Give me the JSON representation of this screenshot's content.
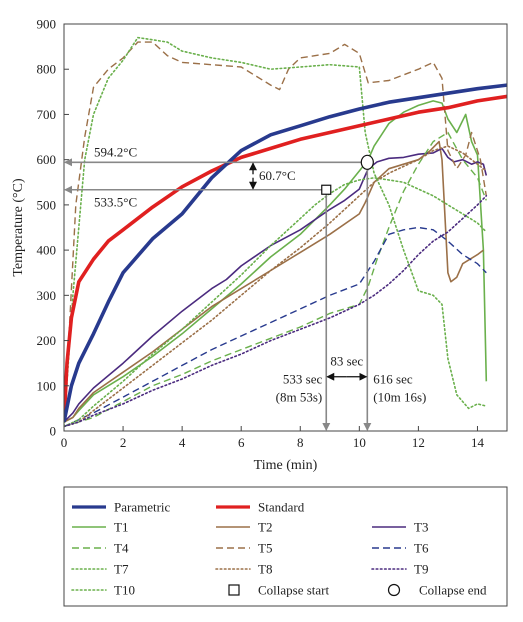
{
  "chart_data": {
    "type": "line",
    "xlabel": "Time (min)",
    "ylabel": "Temperature (°C)",
    "xlim": [
      0,
      15
    ],
    "ylim": [
      0,
      900
    ],
    "xticks": [
      "0",
      "2",
      "4",
      "6",
      "8",
      "10",
      "12",
      "14"
    ],
    "yticks": [
      "0",
      "100",
      "200",
      "300",
      "400",
      "500",
      "600",
      "700",
      "800",
      "900"
    ],
    "grid": false,
    "legend_position": "bottom",
    "series": [
      {
        "name": "Parametric",
        "color": "#283a8e",
        "style": "solid",
        "width": 3.6,
        "x": [
          0,
          0.25,
          0.5,
          1,
          1.5,
          2,
          3,
          4,
          5,
          6,
          7,
          8,
          9,
          10,
          11,
          12,
          13,
          14,
          15
        ],
        "y": [
          20,
          100,
          150,
          215,
          285,
          350,
          425,
          480,
          560,
          620,
          655,
          675,
          695,
          712,
          727,
          737,
          747,
          757,
          765
        ]
      },
      {
        "name": "Standard",
        "color": "#e02020",
        "style": "solid",
        "width": 3.6,
        "x": [
          0,
          0.1,
          0.25,
          0.5,
          1,
          1.5,
          2,
          3,
          4,
          5,
          6,
          7,
          8,
          9,
          10,
          11,
          12,
          13,
          14,
          15
        ],
        "y": [
          20,
          150,
          250,
          330,
          380,
          420,
          445,
          495,
          540,
          575,
          605,
          625,
          645,
          660,
          675,
          690,
          705,
          715,
          730,
          740
        ]
      },
      {
        "name": "T1",
        "color": "#6ab04c",
        "style": "solid",
        "width": 1.6,
        "x": [
          0,
          0.3,
          0.5,
          1,
          2,
          3,
          4,
          5,
          6,
          7,
          8,
          9,
          9.5,
          10,
          10.3,
          10.5,
          11,
          11.5,
          12,
          12.5,
          12.8,
          13,
          13.3,
          13.6,
          13.8,
          14,
          14.2,
          14.3
        ],
        "y": [
          20,
          30,
          45,
          80,
          120,
          165,
          215,
          270,
          325,
          385,
          435,
          500,
          535,
          575,
          600,
          630,
          680,
          705,
          720,
          730,
          725,
          690,
          660,
          700,
          640,
          610,
          400,
          110
        ]
      },
      {
        "name": "T2",
        "color": "#9b7048",
        "style": "solid",
        "width": 1.6,
        "x": [
          0,
          0.3,
          0.5,
          1,
          2,
          3,
          4,
          5,
          6,
          7,
          8,
          9,
          10,
          10.2,
          10.5,
          11,
          11.5,
          12,
          12.4,
          12.7,
          12.8,
          13,
          13.1,
          13.3,
          13.5,
          14,
          14.2
        ],
        "y": [
          20,
          30,
          50,
          85,
          130,
          175,
          225,
          275,
          315,
          355,
          395,
          435,
          480,
          505,
          550,
          580,
          590,
          600,
          620,
          640,
          600,
          350,
          330,
          340,
          370,
          390,
          400
        ]
      },
      {
        "name": "T3",
        "color": "#4b2b7f",
        "style": "solid",
        "width": 1.6,
        "x": [
          0,
          0.3,
          0.5,
          1,
          2,
          3,
          4,
          5,
          5.5,
          6,
          7,
          8,
          9,
          9.5,
          10,
          10.3,
          10.6,
          11,
          11.5,
          12,
          12.5,
          12.8,
          13,
          13.2,
          13.5,
          13.8,
          14,
          14.2,
          14.3
        ],
        "y": [
          20,
          40,
          60,
          95,
          150,
          210,
          265,
          315,
          335,
          365,
          410,
          445,
          490,
          510,
          535,
          580,
          595,
          603,
          605,
          612,
          615,
          625,
          605,
          595,
          600,
          590,
          595,
          590,
          565
        ]
      },
      {
        "name": "T4",
        "color": "#6ab04c",
        "style": "dashed",
        "width": 1.4,
        "x": [
          0,
          0.5,
          1,
          2,
          3,
          4,
          5,
          6,
          7,
          8,
          9,
          10,
          10.3,
          10.6,
          11,
          11.5,
          12,
          12.5,
          13,
          13.5,
          14,
          14.3
        ],
        "y": [
          10,
          20,
          30,
          65,
          100,
          125,
          155,
          180,
          205,
          230,
          260,
          280,
          320,
          380,
          450,
          530,
          590,
          640,
          660,
          600,
          560,
          510
        ]
      },
      {
        "name": "T5",
        "color": "#9b7048",
        "style": "dashed",
        "width": 1.4,
        "x": [
          0,
          0.2,
          0.4,
          0.7,
          1,
          1.5,
          2,
          2.5,
          3,
          3.5,
          4,
          5,
          6,
          7,
          7.3,
          7.6,
          8,
          9,
          9.5,
          10,
          10.3,
          11,
          12,
          12.5,
          12.8,
          13,
          13.3,
          13.6,
          13.8,
          14.1,
          14.3
        ],
        "y": [
          20,
          250,
          500,
          650,
          760,
          800,
          825,
          860,
          860,
          830,
          815,
          810,
          805,
          765,
          755,
          800,
          825,
          835,
          855,
          835,
          770,
          775,
          800,
          815,
          780,
          620,
          580,
          610,
          660,
          600,
          520
        ]
      },
      {
        "name": "T6",
        "color": "#283a8e",
        "style": "dashed",
        "width": 1.4,
        "x": [
          0,
          0.5,
          1,
          2,
          3,
          4,
          5,
          6,
          7,
          8,
          9,
          10,
          10.5,
          11,
          11.5,
          12,
          12.5,
          12.8,
          13,
          13.5,
          14,
          14.3
        ],
        "y": [
          10,
          25,
          40,
          75,
          110,
          145,
          180,
          210,
          240,
          270,
          300,
          325,
          375,
          435,
          445,
          450,
          445,
          430,
          420,
          390,
          370,
          350
        ]
      },
      {
        "name": "T7",
        "color": "#6ab04c",
        "style": "dotted",
        "width": 1.6,
        "x": [
          0,
          0.5,
          1,
          2,
          3,
          4,
          5,
          6,
          7,
          8,
          8.5,
          9,
          9.5,
          10,
          10.5,
          11,
          11.5,
          12,
          12.5,
          13,
          13.5,
          14,
          14.3
        ],
        "y": [
          10,
          25,
          55,
          110,
          170,
          225,
          285,
          345,
          410,
          470,
          500,
          525,
          545,
          555,
          560,
          555,
          550,
          535,
          520,
          500,
          480,
          460,
          440
        ]
      },
      {
        "name": "T8",
        "color": "#9b7048",
        "style": "dotted",
        "width": 1.6,
        "x": [
          0,
          0.5,
          1,
          2,
          3,
          4,
          5,
          6,
          7,
          8,
          9,
          9.5,
          10,
          10.5,
          11,
          11.5,
          12,
          12.5,
          13,
          13.5,
          14,
          14.3
        ],
        "y": [
          10,
          20,
          45,
          95,
          145,
          195,
          245,
          300,
          355,
          405,
          460,
          490,
          520,
          550,
          570,
          585,
          600,
          620,
          630,
          615,
          590,
          575
        ]
      },
      {
        "name": "T9",
        "color": "#4b2b7f",
        "style": "dotted",
        "width": 1.6,
        "x": [
          0,
          0.5,
          1,
          2,
          3,
          4,
          5,
          6,
          7,
          8,
          9,
          10,
          10.5,
          11,
          11.5,
          12,
          12.5,
          13,
          13.5,
          14,
          14.3
        ],
        "y": [
          10,
          20,
          35,
          60,
          90,
          115,
          145,
          170,
          200,
          225,
          250,
          280,
          300,
          325,
          355,
          390,
          420,
          440,
          470,
          500,
          520
        ]
      },
      {
        "name": "T10",
        "color": "#6ab04c",
        "style": "dotted",
        "width": 1.6,
        "x": [
          0,
          0.3,
          0.7,
          1,
          1.5,
          2,
          2.5,
          3,
          3.5,
          4,
          5,
          6,
          7,
          8,
          9,
          10,
          10.2,
          10.5,
          11,
          11.5,
          12,
          12.5,
          12.8,
          13,
          13.3,
          13.7,
          14,
          14.3
        ],
        "y": [
          10,
          300,
          600,
          700,
          780,
          820,
          870,
          865,
          860,
          840,
          825,
          815,
          800,
          805,
          810,
          805,
          660,
          570,
          500,
          400,
          310,
          300,
          280,
          160,
          80,
          50,
          60,
          55
        ]
      }
    ],
    "markers": [
      {
        "name": "Collapse start",
        "shape": "square",
        "x": 8.88,
        "y": 533.5
      },
      {
        "name": "Collapse end",
        "shape": "circle",
        "x": 10.27,
        "y": 594.2
      }
    ],
    "annotations": {
      "temp_upper": {
        "text": "594.2°C",
        "y": 594.2
      },
      "temp_lower": {
        "text": "533.5°C",
        "y": 533.5
      },
      "temp_diff": {
        "text": "60.7°C",
        "x": 6.4
      },
      "duration": {
        "text": "83 sec"
      },
      "start_time": {
        "line1": "533 sec",
        "line2": "(8m 53s)",
        "x": 8.88
      },
      "end_time": {
        "line1": "616 sec",
        "line2": "(10m 16s)",
        "x": 10.27
      }
    },
    "legend": {
      "rows": [
        [
          "Parametric",
          "Standard"
        ],
        [
          "T1",
          "T2",
          "T3"
        ],
        [
          "T4",
          "T5",
          "T6"
        ],
        [
          "T7",
          "T8",
          "T9"
        ],
        [
          "T10",
          "Collapse start",
          "Collapse end"
        ]
      ]
    }
  }
}
